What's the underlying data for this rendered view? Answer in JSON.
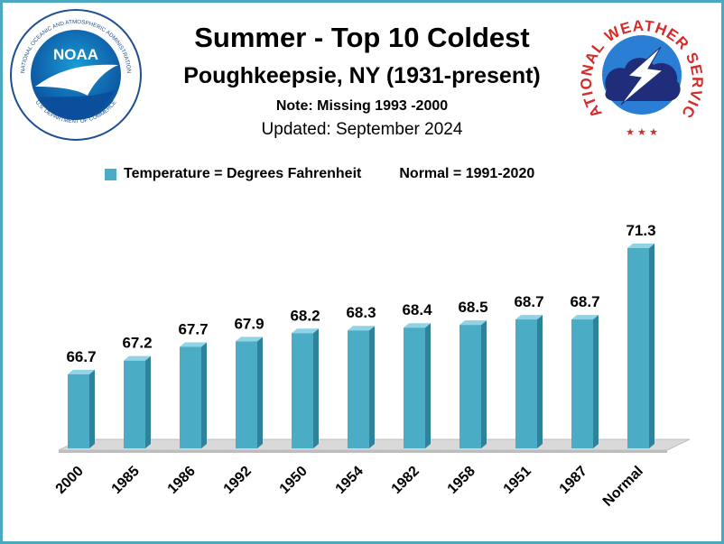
{
  "header": {
    "title": "Summer - Top  10 Coldest",
    "subtitle": "Poughkeepsie, NY (1931-present)",
    "note": "Note: Missing 1993 -2000",
    "updated": "Updated:  September 2024"
  },
  "legend": {
    "series_label": "Temperature = Degrees Fahrenheit",
    "normal_label": "Normal = 1991-2020"
  },
  "logos": {
    "noaa": {
      "text": "NOAA",
      "ring_text": "NATIONAL OCEANIC AND ATMOSPHERIC ADMINISTRATION",
      "bottom_text": "U.S. DEPARTMENT OF COMMERCE"
    },
    "nws": {
      "ring_text": "NATIONAL WEATHER SERVICE"
    }
  },
  "colors": {
    "bar_front": "#4bacc6",
    "bar_side": "#2f8299",
    "bar_top": "#8fd3e4",
    "border": "#4aa8c0",
    "floor": "#d9d9d9"
  },
  "chart_data": {
    "type": "bar",
    "categories": [
      "2000",
      "1985",
      "1986",
      "1992",
      "1950",
      "1954",
      "1982",
      "1958",
      "1951",
      "1987",
      "Normal"
    ],
    "values": [
      66.7,
      67.2,
      67.7,
      67.9,
      68.2,
      68.3,
      68.4,
      68.5,
      68.7,
      68.7,
      71.3
    ],
    "data_labels": [
      "66.7",
      "67.2",
      "67.7",
      "67.9",
      "68.2",
      "68.3",
      "68.4",
      "68.5",
      "68.7",
      "68.7",
      "71.3"
    ],
    "ylim": [
      64,
      72
    ],
    "grid": false,
    "legend_position": "top",
    "xlabel": "",
    "ylabel": ""
  }
}
